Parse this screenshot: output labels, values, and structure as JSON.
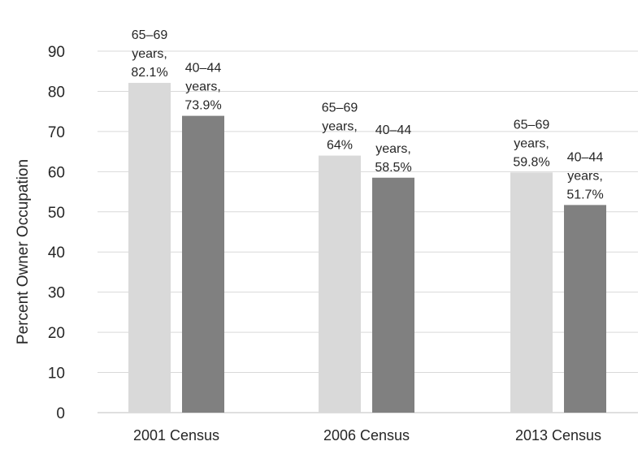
{
  "chart_data": {
    "type": "bar",
    "title": "",
    "xlabel": "",
    "ylabel": "Percent Owner Occupation",
    "ylim": [
      0,
      90
    ],
    "yticks": [
      0,
      10,
      20,
      30,
      40,
      50,
      60,
      70,
      80,
      90
    ],
    "grid": true,
    "legend": "none",
    "categories": [
      "2001 Census",
      "2006 Census",
      "2013 Census"
    ],
    "series": [
      {
        "color": "#d9d9d9",
        "values": [
          82.1,
          64,
          59.8
        ],
        "data_labels": [
          [
            "65–69",
            "years,",
            "82.1%"
          ],
          [
            "65–69",
            "years,",
            "64%"
          ],
          [
            "65–69",
            "years,",
            "59.8%"
          ]
        ]
      },
      {
        "color": "#808080",
        "values": [
          73.9,
          58.5,
          51.7
        ],
        "data_labels": [
          [
            "40–44",
            "years,",
            "73.9%"
          ],
          [
            "40–44",
            "years,",
            "58.5%"
          ],
          [
            "40–44",
            "years,",
            "51.7%"
          ]
        ]
      }
    ]
  }
}
